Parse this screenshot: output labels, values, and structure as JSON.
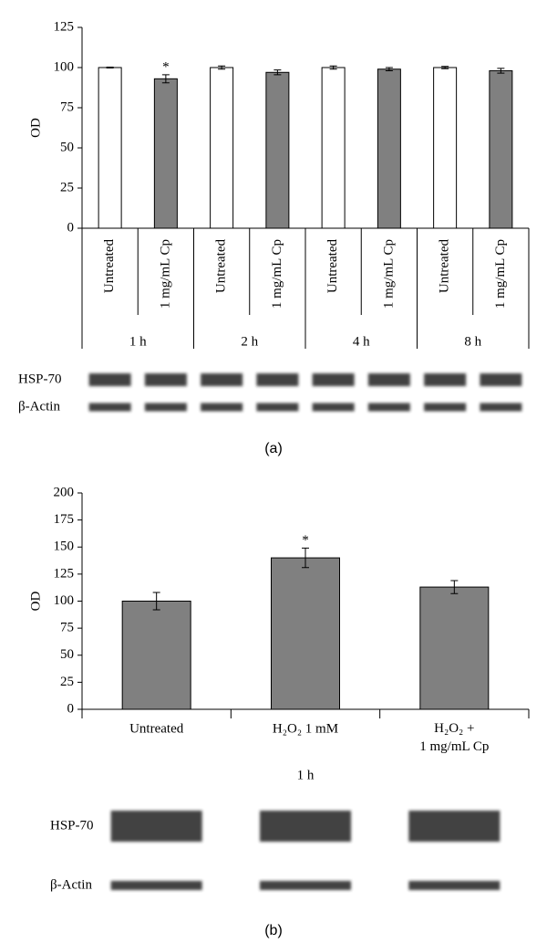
{
  "chart_data": [
    {
      "type": "bar",
      "ylabel": "OD",
      "categories": [
        "Untreated",
        "1 mg/mL Cp",
        "Untreated",
        "1 mg/mL Cp",
        "Untreated",
        "1 mg/mL Cp",
        "Untreated",
        "1 mg/mL Cp"
      ],
      "groups": [
        "1 h",
        "2 h",
        "4 h",
        "8 h"
      ],
      "values": [
        100,
        93,
        100,
        97,
        100,
        99,
        100,
        98
      ],
      "errors": [
        0.3,
        2.5,
        1,
        1.5,
        1,
        1,
        0.7,
        1.5
      ],
      "value_annotations": [
        null,
        "*",
        null,
        null,
        null,
        null,
        null,
        null
      ],
      "colors": [
        "#ffffff",
        "#808080",
        "#ffffff",
        "#808080",
        "#ffffff",
        "#808080",
        "#ffffff",
        "#808080"
      ],
      "ylim": [
        0,
        125
      ],
      "yticks": [
        0,
        25,
        50,
        75,
        100,
        125
      ],
      "blot_labels": [
        "HSP-70",
        "β-Actin"
      ],
      "caption": "(a)"
    },
    {
      "type": "bar",
      "ylabel": "OD",
      "categories": [
        "Untreated",
        "H₂O₂ 1 mM",
        "H₂O₂ +\n1 mg/mL Cp"
      ],
      "groups": [
        "1 h"
      ],
      "values": [
        100,
        140,
        113
      ],
      "errors": [
        8,
        9,
        6
      ],
      "value_annotations": [
        null,
        "*",
        null
      ],
      "colors": [
        "#808080",
        "#808080",
        "#808080"
      ],
      "ylim": [
        0,
        200
      ],
      "yticks": [
        0,
        25,
        50,
        75,
        100,
        125,
        150,
        175,
        200
      ],
      "blot_labels": [
        "HSP-70",
        "β-Actin"
      ],
      "caption": "(b)"
    }
  ]
}
